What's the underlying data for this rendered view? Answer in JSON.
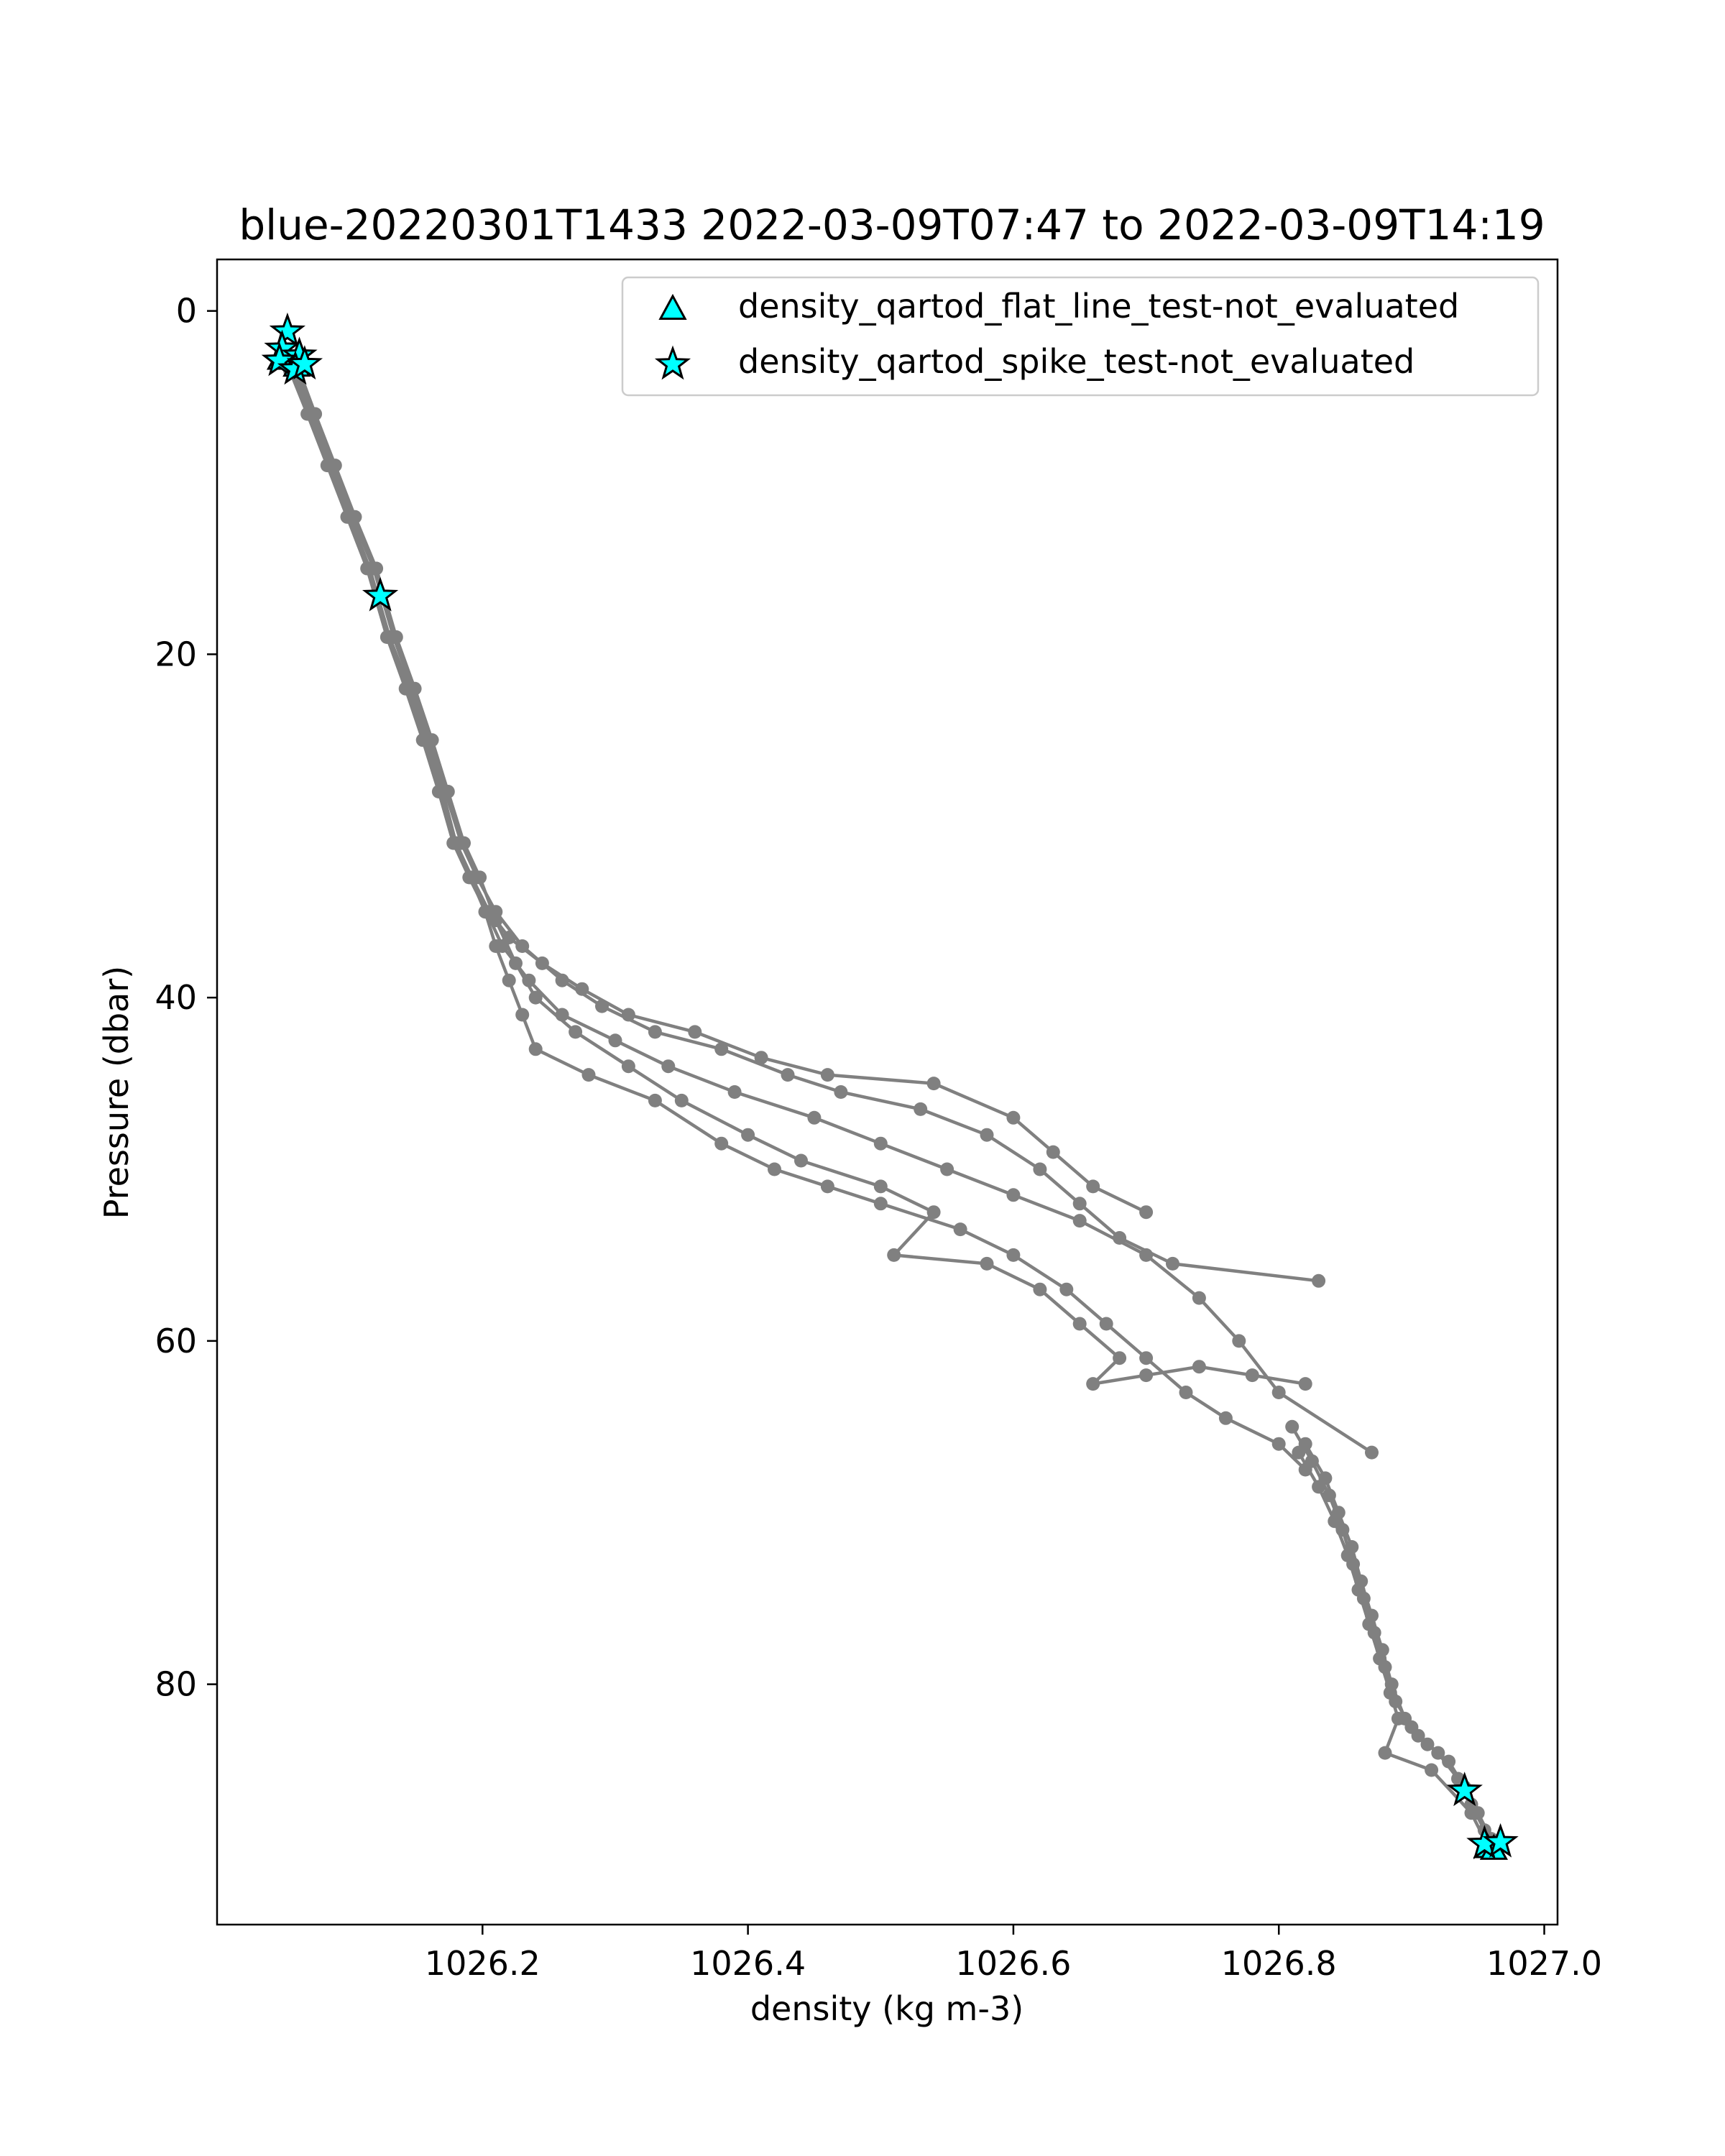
{
  "chart_data": {
    "type": "scatter",
    "title": "blue-20220301T1433 2022-03-09T07:47 to 2022-03-09T14:19",
    "xlabel": "density (kg m-3)",
    "ylabel": "Pressure (dbar)",
    "xlim": [
      1026.0,
      1027.01
    ],
    "ylim": [
      94,
      -3
    ],
    "y_inverted": true,
    "grid": false,
    "legend_position": "top-right",
    "xticks": [
      1026.2,
      1026.4,
      1026.6,
      1026.8,
      1027.0
    ],
    "xtick_labels": [
      "1026.2",
      "1026.4",
      "1026.6",
      "1026.8",
      "1027.0"
    ],
    "yticks": [
      0,
      20,
      40,
      60,
      80
    ],
    "ytick_labels": [
      "0",
      "20",
      "40",
      "60",
      "80"
    ],
    "colors": {
      "profile": "#808080",
      "flag_fill": "#00ffff",
      "flag_edge": "#000000"
    },
    "profile_series": {
      "marker": "circle",
      "casts": [
        [
          [
            1026.058,
            3.5
          ],
          [
            1026.07,
            6
          ],
          [
            1026.085,
            9
          ],
          [
            1026.1,
            12
          ],
          [
            1026.115,
            15
          ],
          [
            1026.13,
            19
          ],
          [
            1026.145,
            22
          ],
          [
            1026.158,
            25
          ],
          [
            1026.17,
            28
          ],
          [
            1026.18,
            31
          ],
          [
            1026.192,
            33
          ],
          [
            1026.205,
            35
          ],
          [
            1026.22,
            36.5
          ],
          [
            1026.245,
            38
          ],
          [
            1026.275,
            39.5
          ],
          [
            1026.31,
            41
          ],
          [
            1026.36,
            42
          ],
          [
            1026.41,
            43.5
          ],
          [
            1026.46,
            44.5
          ],
          [
            1026.54,
            45
          ],
          [
            1026.6,
            47
          ],
          [
            1026.63,
            49
          ],
          [
            1026.66,
            51
          ],
          [
            1026.7,
            52.5
          ]
        ],
        [
          [
            1026.06,
            3.5
          ],
          [
            1026.072,
            6
          ],
          [
            1026.087,
            9
          ],
          [
            1026.102,
            12
          ],
          [
            1026.118,
            15
          ],
          [
            1026.133,
            19
          ],
          [
            1026.147,
            22
          ],
          [
            1026.16,
            25
          ],
          [
            1026.172,
            28
          ],
          [
            1026.184,
            31
          ],
          [
            1026.196,
            33
          ],
          [
            1026.21,
            35
          ],
          [
            1026.23,
            37
          ],
          [
            1026.26,
            39
          ],
          [
            1026.29,
            40.5
          ],
          [
            1026.33,
            42
          ],
          [
            1026.38,
            43
          ],
          [
            1026.43,
            44.5
          ],
          [
            1026.47,
            45.5
          ],
          [
            1026.53,
            46.5
          ],
          [
            1026.58,
            48
          ],
          [
            1026.62,
            50
          ],
          [
            1026.65,
            52
          ],
          [
            1026.68,
            54
          ],
          [
            1026.72,
            55.5
          ],
          [
            1026.83,
            56.5
          ]
        ],
        [
          [
            1026.055,
            3.5
          ],
          [
            1026.068,
            6
          ],
          [
            1026.083,
            9
          ],
          [
            1026.098,
            12
          ],
          [
            1026.113,
            15
          ],
          [
            1026.128,
            19
          ],
          [
            1026.142,
            22
          ],
          [
            1026.155,
            25
          ],
          [
            1026.167,
            28
          ],
          [
            1026.178,
            31
          ],
          [
            1026.19,
            33
          ],
          [
            1026.203,
            35
          ],
          [
            1026.215,
            37
          ],
          [
            1026.235,
            39
          ],
          [
            1026.26,
            41
          ],
          [
            1026.3,
            42.5
          ],
          [
            1026.34,
            44
          ],
          [
            1026.39,
            45.5
          ],
          [
            1026.45,
            47
          ],
          [
            1026.5,
            48.5
          ],
          [
            1026.55,
            50
          ],
          [
            1026.6,
            51.5
          ],
          [
            1026.65,
            53
          ],
          [
            1026.7,
            55
          ],
          [
            1026.74,
            57.5
          ],
          [
            1026.77,
            60
          ],
          [
            1026.8,
            63
          ],
          [
            1026.87,
            66.5
          ]
        ],
        [
          [
            1026.062,
            3.5
          ],
          [
            1026.074,
            6
          ],
          [
            1026.089,
            9
          ],
          [
            1026.104,
            12
          ],
          [
            1026.12,
            15
          ],
          [
            1026.135,
            19
          ],
          [
            1026.149,
            22
          ],
          [
            1026.162,
            25
          ],
          [
            1026.174,
            28
          ],
          [
            1026.186,
            31
          ],
          [
            1026.198,
            33
          ],
          [
            1026.21,
            35.5
          ],
          [
            1026.225,
            38
          ],
          [
            1026.24,
            40
          ],
          [
            1026.27,
            42
          ],
          [
            1026.31,
            44
          ],
          [
            1026.35,
            46
          ],
          [
            1026.4,
            48
          ],
          [
            1026.44,
            49.5
          ],
          [
            1026.5,
            51
          ],
          [
            1026.54,
            52.5
          ],
          [
            1026.51,
            55
          ],
          [
            1026.58,
            55.5
          ],
          [
            1026.62,
            57
          ],
          [
            1026.65,
            59
          ],
          [
            1026.68,
            61
          ],
          [
            1026.66,
            62.5
          ],
          [
            1026.7,
            62
          ],
          [
            1026.74,
            61.5
          ],
          [
            1026.78,
            62
          ],
          [
            1026.82,
            62.5
          ]
        ],
        [
          [
            1026.057,
            3.5
          ],
          [
            1026.069,
            6
          ],
          [
            1026.084,
            9
          ],
          [
            1026.099,
            12
          ],
          [
            1026.114,
            15
          ],
          [
            1026.129,
            19
          ],
          [
            1026.143,
            22
          ],
          [
            1026.156,
            25
          ],
          [
            1026.168,
            28
          ],
          [
            1026.179,
            31
          ],
          [
            1026.191,
            33
          ],
          [
            1026.202,
            35
          ],
          [
            1026.21,
            37
          ],
          [
            1026.22,
            39
          ],
          [
            1026.23,
            41
          ],
          [
            1026.24,
            43
          ],
          [
            1026.28,
            44.5
          ],
          [
            1026.33,
            46
          ],
          [
            1026.38,
            48.5
          ],
          [
            1026.42,
            50
          ],
          [
            1026.46,
            51
          ],
          [
            1026.5,
            52
          ],
          [
            1026.56,
            53.5
          ],
          [
            1026.6,
            55
          ],
          [
            1026.64,
            57
          ],
          [
            1026.67,
            59
          ],
          [
            1026.7,
            61
          ],
          [
            1026.73,
            63
          ],
          [
            1026.76,
            64.5
          ],
          [
            1026.8,
            66
          ],
          [
            1026.82,
            67.5
          ]
        ],
        [
          [
            1026.82,
            66
          ],
          [
            1026.835,
            68
          ],
          [
            1026.845,
            70
          ],
          [
            1026.855,
            72
          ],
          [
            1026.862,
            74
          ],
          [
            1026.87,
            76
          ],
          [
            1026.878,
            78
          ],
          [
            1026.885,
            80
          ],
          [
            1026.895,
            82
          ],
          [
            1026.905,
            83
          ],
          [
            1026.92,
            84
          ],
          [
            1026.935,
            85.5
          ],
          [
            1026.945,
            87
          ],
          [
            1026.955,
            88.5
          ],
          [
            1026.965,
            89.5
          ]
        ],
        [
          [
            1026.81,
            65
          ],
          [
            1026.825,
            67
          ],
          [
            1026.838,
            69
          ],
          [
            1026.848,
            71
          ],
          [
            1026.856,
            73
          ],
          [
            1026.864,
            75
          ],
          [
            1026.872,
            77
          ],
          [
            1026.88,
            79
          ],
          [
            1026.888,
            81
          ],
          [
            1026.9,
            82.5
          ],
          [
            1026.912,
            83.5
          ],
          [
            1026.928,
            84.5
          ],
          [
            1026.94,
            86
          ],
          [
            1026.95,
            87.5
          ],
          [
            1026.96,
            89
          ]
        ],
        [
          [
            1026.815,
            66.5
          ],
          [
            1026.83,
            68.5
          ],
          [
            1026.842,
            70.5
          ],
          [
            1026.852,
            72.5
          ],
          [
            1026.86,
            74.5
          ],
          [
            1026.868,
            76.5
          ],
          [
            1026.876,
            78.5
          ],
          [
            1026.884,
            80.5
          ],
          [
            1026.89,
            82
          ],
          [
            1026.88,
            84
          ],
          [
            1026.915,
            85
          ],
          [
            1026.945,
            87.5
          ],
          [
            1026.958,
            89.5
          ]
        ]
      ]
    },
    "series": [
      {
        "name": "density_qartod_flat_line_test-not_evaluated",
        "marker": "triangle",
        "points": [
          [
            1026.048,
            2.8
          ],
          [
            1026.06,
            3.2
          ],
          [
            1026.957,
            89.5
          ],
          [
            1026.962,
            89.6
          ]
        ]
      },
      {
        "name": "density_qartod_spike_test-not_evaluated",
        "marker": "star",
        "points": [
          [
            1026.053,
            1.2
          ],
          [
            1026.049,
            2.2
          ],
          [
            1026.062,
            2.6
          ],
          [
            1026.047,
            2.9
          ],
          [
            1026.059,
            3.4
          ],
          [
            1026.066,
            3.1
          ],
          [
            1026.123,
            16.6
          ],
          [
            1026.94,
            86.2
          ],
          [
            1026.955,
            89.3
          ],
          [
            1026.967,
            89.2
          ]
        ]
      }
    ]
  }
}
